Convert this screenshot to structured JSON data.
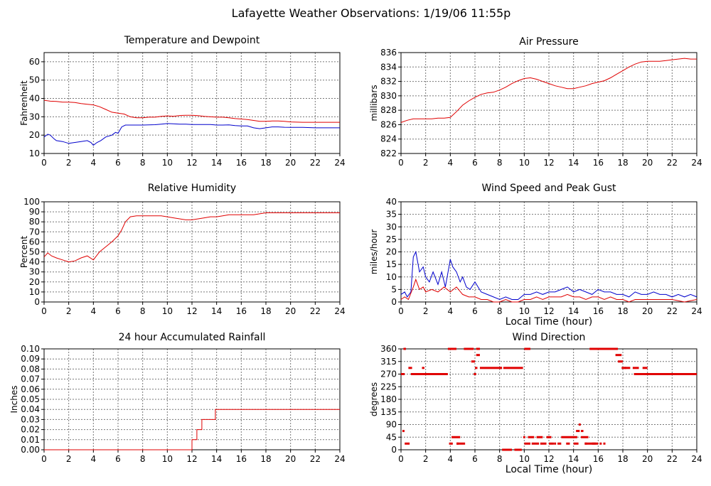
{
  "page": {
    "title": "Lafayette Weather Observations: 1/19/06 11:55p"
  },
  "colors": {
    "red": "#e00000",
    "blue": "#0000cc"
  },
  "chart_data": [
    {
      "id": "temp",
      "type": "line",
      "title": "Temperature and Dewpoint",
      "ylabel": "Fahrenheit",
      "xlabel": "",
      "xlim": [
        0,
        24
      ],
      "ylim": [
        10,
        65
      ],
      "xticks": [
        0,
        2,
        4,
        6,
        8,
        10,
        12,
        14,
        16,
        18,
        20,
        22,
        24
      ],
      "yticks": [
        10,
        20,
        30,
        40,
        50,
        60
      ],
      "grid": true,
      "series": [
        {
          "color": "#e00000",
          "x": [
            0,
            0.5,
            1,
            1.5,
            2,
            2.5,
            3,
            3.5,
            4,
            4.5,
            5,
            5.5,
            6,
            6.5,
            7,
            7.5,
            8,
            8.5,
            9,
            9.5,
            10,
            10.5,
            11,
            11.5,
            12,
            12.5,
            13,
            13.5,
            14,
            14.5,
            15,
            15.5,
            16,
            16.5,
            17,
            17.5,
            18,
            18.5,
            19,
            19.5,
            20,
            21,
            22,
            23,
            24
          ],
          "y": [
            39,
            38.5,
            38.4,
            38,
            38,
            37.8,
            37.2,
            36.8,
            36.5,
            35.5,
            34,
            32.5,
            32,
            31.5,
            30,
            29.5,
            29.5,
            29.8,
            29.8,
            30.2,
            30.5,
            30.3,
            30.7,
            30.8,
            30.8,
            30.6,
            30.2,
            30,
            29.8,
            29.8,
            29.5,
            29,
            28.8,
            28.5,
            28,
            27.5,
            27.5,
            27.7,
            27.7,
            27.5,
            27.2,
            27,
            27,
            27,
            27
          ]
        },
        {
          "color": "#0000cc",
          "x": [
            0,
            0.3,
            0.5,
            0.8,
            1,
            1.5,
            2,
            2.5,
            3,
            3.5,
            3.8,
            4,
            4.3,
            4.6,
            5,
            5.5,
            5.8,
            6,
            6.3,
            6.6,
            7,
            7.5,
            8,
            9,
            9.5,
            10,
            10.5,
            11,
            11.5,
            12,
            12.5,
            13,
            13.5,
            14,
            14.5,
            15,
            15.5,
            16,
            16.5,
            17,
            17.5,
            18,
            18.5,
            19,
            19.5,
            20,
            21,
            22,
            23,
            24
          ],
          "y": [
            19,
            20.5,
            20,
            18,
            17,
            16.5,
            15.5,
            16,
            16.5,
            17,
            16,
            14.5,
            16,
            17,
            19,
            20,
            21.5,
            21,
            24.5,
            25.5,
            25.5,
            25.5,
            25.5,
            25.7,
            26,
            26.3,
            26.2,
            26,
            26,
            25.8,
            25.8,
            25.8,
            25.8,
            25.5,
            25.5,
            25.6,
            25.2,
            25,
            25,
            24,
            23.5,
            24,
            24.5,
            24.5,
            24.3,
            24.2,
            24.2,
            24,
            24,
            24
          ]
        }
      ]
    },
    {
      "id": "pressure",
      "type": "line",
      "title": "Air Pressure",
      "ylabel": "millibars",
      "xlabel": "",
      "xlim": [
        0,
        24
      ],
      "ylim": [
        822,
        836
      ],
      "xticks": [
        0,
        2,
        4,
        6,
        8,
        10,
        12,
        14,
        16,
        18,
        20,
        22,
        24
      ],
      "yticks": [
        822,
        824,
        826,
        828,
        830,
        832,
        834,
        836
      ],
      "grid": true,
      "series": [
        {
          "color": "#e00000",
          "x": [
            0,
            0.5,
            1,
            1.5,
            2,
            2.5,
            3,
            3.5,
            4,
            4.5,
            5,
            5.5,
            6,
            6.5,
            7,
            7.5,
            8,
            8.5,
            9,
            9.5,
            10,
            10.5,
            11,
            11.5,
            12,
            12.5,
            13,
            13.5,
            14,
            14.5,
            15,
            15.5,
            16,
            16.5,
            17,
            17.5,
            18,
            18.5,
            19,
            19.5,
            20,
            20.5,
            21,
            21.5,
            22,
            22.5,
            23,
            23.5,
            24
          ],
          "y": [
            826.3,
            826.6,
            826.8,
            826.8,
            826.8,
            826.8,
            826.9,
            826.9,
            827,
            827.8,
            828.7,
            829.3,
            829.8,
            830.2,
            830.4,
            830.5,
            830.8,
            831.2,
            831.7,
            832.1,
            832.4,
            832.5,
            832.3,
            832,
            831.7,
            831.4,
            831.2,
            831,
            831,
            831.2,
            831.4,
            831.7,
            831.9,
            832.1,
            832.5,
            833,
            833.5,
            834,
            834.4,
            834.7,
            834.8,
            834.8,
            834.8,
            834.9,
            835,
            835.1,
            835.2,
            835.1,
            835.1
          ]
        }
      ]
    },
    {
      "id": "humidity",
      "type": "line",
      "title": "Relative Humidity",
      "ylabel": "Percent",
      "xlabel": "",
      "xlim": [
        0,
        24
      ],
      "ylim": [
        0,
        100
      ],
      "xticks": [
        0,
        2,
        4,
        6,
        8,
        10,
        12,
        14,
        16,
        18,
        20,
        22,
        24
      ],
      "yticks": [
        0,
        10,
        20,
        30,
        40,
        50,
        60,
        70,
        80,
        90,
        100
      ],
      "grid": true,
      "series": [
        {
          "color": "#e00000",
          "x": [
            0,
            0.3,
            0.6,
            1,
            1.5,
            2,
            2.5,
            3,
            3.5,
            4,
            4.5,
            5,
            5.5,
            6,
            6.3,
            6.6,
            7,
            7.5,
            8,
            8.5,
            9,
            9.5,
            10,
            10.5,
            11,
            11.5,
            12,
            12.5,
            13,
            13.5,
            14,
            14.5,
            15,
            15.5,
            16,
            16.5,
            17,
            17.5,
            18,
            18.5,
            19,
            20,
            21,
            22,
            23,
            24
          ],
          "y": [
            45,
            49,
            46,
            44,
            42,
            40,
            41,
            44,
            46,
            42,
            50,
            55,
            60,
            66,
            72,
            80,
            85,
            86,
            86,
            86,
            86,
            86,
            85,
            84,
            83,
            82,
            82,
            83,
            84,
            85,
            85,
            86,
            87,
            87,
            87,
            87,
            87,
            88,
            89,
            89,
            89,
            89,
            89,
            89,
            89,
            89
          ]
        }
      ]
    },
    {
      "id": "wind",
      "type": "line",
      "title": "Wind Speed and Peak Gust",
      "ylabel": "miles/hour",
      "xlabel": "Local Time (hour)",
      "xlim": [
        0,
        24
      ],
      "ylim": [
        0,
        40
      ],
      "xticks": [
        0,
        2,
        4,
        6,
        8,
        10,
        12,
        14,
        16,
        18,
        20,
        22,
        24
      ],
      "yticks": [
        0,
        5,
        10,
        15,
        20,
        25,
        30,
        35,
        40
      ],
      "grid": true,
      "series": [
        {
          "color": "#0000cc",
          "x": [
            0,
            0.3,
            0.5,
            0.8,
            1,
            1.2,
            1.5,
            1.8,
            2,
            2.3,
            2.6,
            3,
            3.3,
            3.6,
            4,
            4.2,
            4.5,
            4.8,
            5,
            5.3,
            5.6,
            6,
            6.5,
            7,
            7.5,
            8,
            8.5,
            9,
            9.5,
            10,
            10.5,
            11,
            11.5,
            12,
            12.5,
            13,
            13.5,
            14,
            14.5,
            15,
            15.5,
            16,
            16.5,
            17,
            17.5,
            18,
            18.5,
            19,
            19.5,
            20,
            20.5,
            21,
            21.5,
            22,
            22.5,
            23,
            23.5,
            24
          ],
          "y": [
            3,
            4,
            2,
            4,
            18,
            20,
            12,
            14,
            10,
            8,
            12,
            7,
            12,
            6,
            17,
            14,
            12,
            8,
            10,
            6,
            5,
            8,
            4,
            3,
            2,
            1,
            2,
            1,
            1,
            3,
            3,
            4,
            3,
            4,
            4,
            5,
            6,
            4,
            5,
            4,
            3,
            5,
            4,
            4,
            3,
            3,
            2,
            4,
            3,
            3,
            4,
            3,
            3,
            2,
            3,
            2,
            3,
            2
          ]
        },
        {
          "color": "#e00000",
          "x": [
            0,
            0.3,
            0.6,
            1,
            1.2,
            1.5,
            1.8,
            2,
            2.5,
            3,
            3.5,
            4,
            4.5,
            5,
            5.5,
            6,
            6.5,
            7,
            7.5,
            8,
            8.5,
            9,
            9.5,
            10,
            10.5,
            11,
            11.5,
            12,
            12.5,
            13,
            13.5,
            14,
            14.5,
            15,
            15.5,
            16,
            16.5,
            17,
            17.5,
            18,
            18.5,
            19,
            20,
            21,
            22,
            23,
            24
          ],
          "y": [
            1,
            2,
            1,
            6,
            9,
            5,
            6,
            4,
            5,
            4,
            6,
            4,
            6,
            3,
            2,
            2,
            1,
            1,
            0,
            0,
            1,
            0,
            0,
            1,
            1,
            2,
            1,
            2,
            2,
            2,
            3,
            2,
            2,
            1,
            2,
            2,
            1,
            2,
            1,
            1,
            0,
            1,
            1,
            1,
            1,
            0,
            1
          ]
        }
      ]
    },
    {
      "id": "rain",
      "type": "line",
      "title": "24 hour Accumulated Rainfall",
      "ylabel": "Inches",
      "xlabel": "",
      "xlim": [
        0,
        24
      ],
      "ylim": [
        0,
        0.1
      ],
      "xticks": [
        0,
        2,
        4,
        6,
        8,
        10,
        12,
        14,
        16,
        18,
        20,
        22,
        24
      ],
      "yticks": [
        0,
        0.01,
        0.02,
        0.03,
        0.04,
        0.05,
        0.06,
        0.07,
        0.08,
        0.09,
        0.1
      ],
      "ytick_labels": [
        "0.00",
        "0.01",
        "0.02",
        "0.03",
        "0.04",
        "0.05",
        "0.06",
        "0.07",
        "0.08",
        "0.09",
        "0.10"
      ],
      "grid": true,
      "series": [
        {
          "color": "#e00000",
          "x": [
            0,
            12.0,
            12.0,
            12.4,
            12.4,
            12.8,
            12.8,
            13.3,
            13.3,
            13.9,
            13.9,
            24
          ],
          "y": [
            0,
            0,
            0.01,
            0.01,
            0.02,
            0.02,
            0.03,
            0.03,
            0.03,
            0.03,
            0.04,
            0.04
          ]
        }
      ]
    },
    {
      "id": "direction",
      "type": "scatter",
      "title": "Wind Direction",
      "ylabel": "degrees",
      "xlabel": "Local Time (hour)",
      "xlim": [
        0,
        24
      ],
      "ylim": [
        0,
        360
      ],
      "xticks": [
        0,
        2,
        4,
        6,
        8,
        10,
        12,
        14,
        16,
        18,
        20,
        22,
        24
      ],
      "yticks": [
        0,
        45,
        90,
        135,
        180,
        225,
        270,
        315,
        360
      ],
      "grid": true,
      "segments": [
        [
          0.0,
          0.3,
          270
        ],
        [
          0.2,
          0.4,
          360
        ],
        [
          0.3,
          0.7,
          22
        ],
        [
          0.6,
          0.9,
          292
        ],
        [
          0.8,
          3.8,
          270
        ],
        [
          1.7,
          1.9,
          292
        ],
        [
          3.8,
          4.5,
          360
        ],
        [
          3.9,
          4.2,
          22
        ],
        [
          4.1,
          4.8,
          45
        ],
        [
          4.5,
          5.2,
          22
        ],
        [
          5.1,
          5.9,
          360
        ],
        [
          5.7,
          6.0,
          315
        ],
        [
          5.9,
          6.1,
          270
        ],
        [
          6.0,
          6.2,
          292
        ],
        [
          6.1,
          6.4,
          338
        ],
        [
          6.1,
          6.4,
          360
        ],
        [
          6.4,
          8.2,
          292
        ],
        [
          8.2,
          9.0,
          0
        ],
        [
          8.3,
          9.9,
          292
        ],
        [
          9.2,
          9.8,
          0
        ],
        [
          10.0,
          10.5,
          360
        ],
        [
          10.0,
          10.5,
          22
        ],
        [
          10.3,
          10.8,
          45
        ],
        [
          10.6,
          11.2,
          22
        ],
        [
          11.0,
          11.5,
          45
        ],
        [
          11.3,
          11.8,
          22
        ],
        [
          11.8,
          12.2,
          45
        ],
        [
          12.0,
          12.4,
          22
        ],
        [
          12.7,
          13.0,
          22
        ],
        [
          13.0,
          14.3,
          45
        ],
        [
          13.4,
          13.7,
          22
        ],
        [
          14.0,
          14.4,
          22
        ],
        [
          14.2,
          14.5,
          67
        ],
        [
          14.6,
          14.8,
          67
        ],
        [
          14.6,
          15.2,
          45
        ],
        [
          14.9,
          15.8,
          22
        ],
        [
          15.5,
          16.0,
          22
        ],
        [
          15.3,
          17.6,
          360
        ],
        [
          17.4,
          17.9,
          338
        ],
        [
          17.6,
          18.0,
          315
        ],
        [
          17.9,
          18.6,
          292
        ],
        [
          18.8,
          19.3,
          292
        ],
        [
          18.9,
          24.0,
          270
        ],
        [
          19.6,
          20.0,
          292
        ]
      ],
      "points": [
        [
          0.2,
          67
        ],
        [
          4.6,
          22
        ],
        [
          6.0,
          270
        ],
        [
          8.1,
          292
        ],
        [
          10.0,
          45
        ],
        [
          12.5,
          22
        ],
        [
          14.5,
          90
        ],
        [
          15.0,
          22
        ],
        [
          16.2,
          22
        ],
        [
          16.5,
          22
        ],
        [
          18.2,
          292
        ]
      ]
    }
  ]
}
